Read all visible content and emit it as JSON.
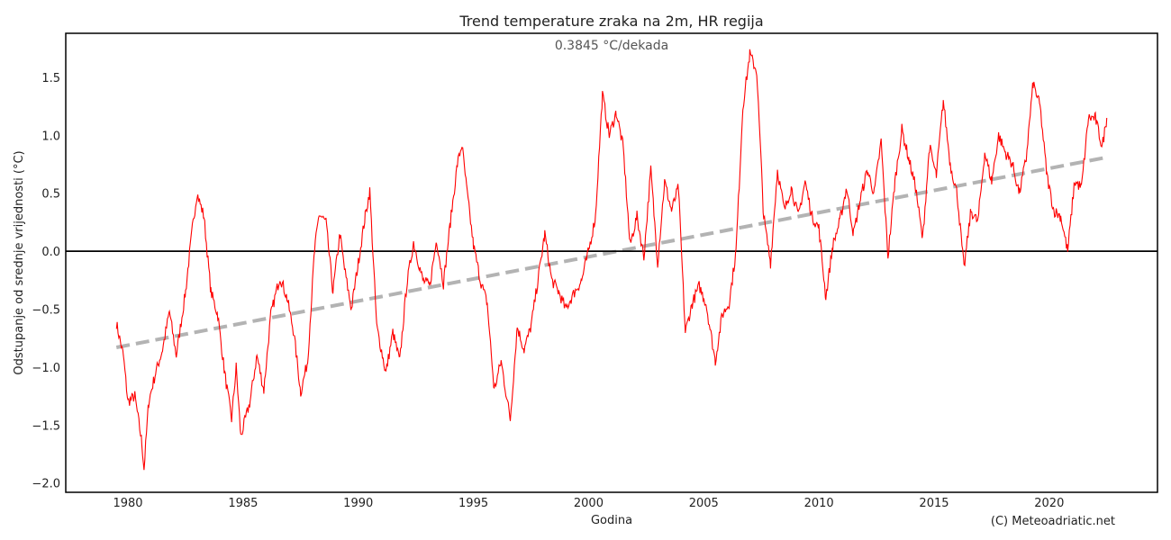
{
  "chart_data": {
    "type": "line",
    "title": "Trend temperature zraka na 2m, HR regija",
    "subtitle": "0.3845 °C/dekada",
    "xlabel": "Godina",
    "ylabel": "Odstupanje od srednje vrijednosti (°C)",
    "credit": "(C) Meteoadriatic.net",
    "xlim": [
      1977.3,
      2024.7
    ],
    "ylim": [
      -2.08,
      1.88
    ],
    "x_ticks": [
      1980,
      1985,
      1990,
      1995,
      2000,
      2005,
      2010,
      2015,
      2020
    ],
    "y_ticks": [
      -2.0,
      -1.5,
      -1.0,
      -0.5,
      0.0,
      0.5,
      1.0,
      1.5
    ],
    "x_tick_labels": [
      "1980",
      "1985",
      "1990",
      "1995",
      "2000",
      "2005",
      "2010",
      "2015",
      "2020"
    ],
    "y_tick_labels": [
      "−2.0",
      "−1.5",
      "−1.0",
      "−0.5",
      "0.0",
      "0.5",
      "1.0",
      "1.5"
    ],
    "grid": false,
    "colors": {
      "series": "#ff0000",
      "trend": "#b3b3b3",
      "zero_line": "#000000",
      "frame": "#000000"
    },
    "series": [
      {
        "style": "solid",
        "x": [
          1979.5,
          1979.8,
          1980.0,
          1980.3,
          1980.6,
          1980.7,
          1980.9,
          1981.2,
          1981.5,
          1981.8,
          1982.1,
          1982.5,
          1982.8,
          1983.0,
          1983.3,
          1983.6,
          1983.9,
          1984.2,
          1984.5,
          1984.7,
          1984.9,
          1985.3,
          1985.6,
          1985.9,
          1986.2,
          1986.6,
          1986.9,
          1987.2,
          1987.5,
          1987.8,
          1988.1,
          1988.3,
          1988.6,
          1988.9,
          1989.2,
          1989.4,
          1989.7,
          1990.0,
          1990.3,
          1990.5,
          1990.8,
          1991.2,
          1991.5,
          1991.8,
          1992.1,
          1992.4,
          1992.8,
          1993.1,
          1993.4,
          1993.7,
          1994.0,
          1994.3,
          1994.5,
          1994.7,
          1995.0,
          1995.3,
          1995.6,
          1995.9,
          1996.2,
          1996.6,
          1996.9,
          1997.2,
          1997.5,
          1997.8,
          1998.1,
          1998.4,
          1998.7,
          1999.0,
          1999.4,
          1999.7,
          2000.0,
          2000.3,
          2000.6,
          2000.9,
          2001.2,
          2001.5,
          2001.8,
          2002.1,
          2002.4,
          2002.7,
          2003.0,
          2003.3,
          2003.6,
          2003.9,
          2004.2,
          2004.5,
          2004.8,
          2005.1,
          2005.5,
          2005.8,
          2006.1,
          2006.4,
          2006.7,
          2007.0,
          2007.3,
          2007.6,
          2007.9,
          2008.2,
          2008.5,
          2008.8,
          2009.1,
          2009.4,
          2009.7,
          2010.0,
          2010.3,
          2010.6,
          2010.9,
          2011.2,
          2011.5,
          2011.8,
          2012.1,
          2012.4,
          2012.7,
          2013.0,
          2013.3,
          2013.6,
          2013.9,
          2014.2,
          2014.5,
          2014.8,
          2015.1,
          2015.4,
          2015.7,
          2016.0,
          2016.3,
          2016.6,
          2016.9,
          2017.2,
          2017.5,
          2017.8,
          2018.1,
          2018.4,
          2018.7,
          2019.0,
          2019.3,
          2019.6,
          2019.9,
          2020.2,
          2020.5,
          2020.8,
          2021.1,
          2021.4,
          2021.7,
          2022.0,
          2022.3,
          2022.5
        ],
        "y": [
          -0.62,
          -0.9,
          -1.3,
          -1.25,
          -1.65,
          -1.88,
          -1.3,
          -1.05,
          -0.85,
          -0.52,
          -0.9,
          -0.35,
          0.2,
          0.5,
          0.3,
          -0.35,
          -0.55,
          -1.05,
          -1.45,
          -1.0,
          -1.6,
          -1.3,
          -0.9,
          -1.2,
          -0.55,
          -0.22,
          -0.4,
          -0.7,
          -1.22,
          -0.95,
          0.0,
          0.32,
          0.25,
          -0.35,
          0.15,
          -0.15,
          -0.5,
          -0.1,
          0.3,
          0.52,
          -0.65,
          -1.05,
          -0.7,
          -0.95,
          -0.3,
          0.08,
          -0.25,
          -0.3,
          0.1,
          -0.28,
          0.25,
          0.75,
          0.92,
          0.55,
          0.05,
          -0.25,
          -0.45,
          -1.2,
          -0.95,
          -1.45,
          -0.65,
          -0.85,
          -0.65,
          -0.25,
          0.15,
          -0.25,
          -0.35,
          -0.5,
          -0.35,
          -0.25,
          0.0,
          0.3,
          1.35,
          1.0,
          1.2,
          0.9,
          0.05,
          0.3,
          -0.05,
          0.7,
          -0.1,
          0.6,
          0.35,
          0.55,
          -0.7,
          -0.45,
          -0.3,
          -0.45,
          -0.95,
          -0.55,
          -0.45,
          0.0,
          1.25,
          1.7,
          1.55,
          0.3,
          -0.1,
          0.7,
          0.35,
          0.55,
          0.3,
          0.6,
          0.3,
          0.2,
          -0.4,
          0.05,
          0.25,
          0.55,
          0.15,
          0.45,
          0.7,
          0.5,
          0.95,
          -0.05,
          0.6,
          1.05,
          0.8,
          0.55,
          0.1,
          0.9,
          0.65,
          1.3,
          0.75,
          0.5,
          -0.15,
          0.35,
          0.25,
          0.85,
          0.6,
          1.0,
          0.85,
          0.75,
          0.5,
          0.8,
          1.45,
          1.25,
          0.65,
          0.35,
          0.3,
          0.0,
          0.6,
          0.55,
          1.15,
          1.15,
          0.9,
          1.15
        ]
      },
      {
        "style": "dashed",
        "x": [
          1979.5,
          2022.5
        ],
        "y": [
          -0.83,
          0.81
        ]
      },
      {
        "style": "solid",
        "x": [
          1977.3,
          2024.7
        ],
        "y": [
          0.0,
          0.0
        ]
      }
    ]
  }
}
